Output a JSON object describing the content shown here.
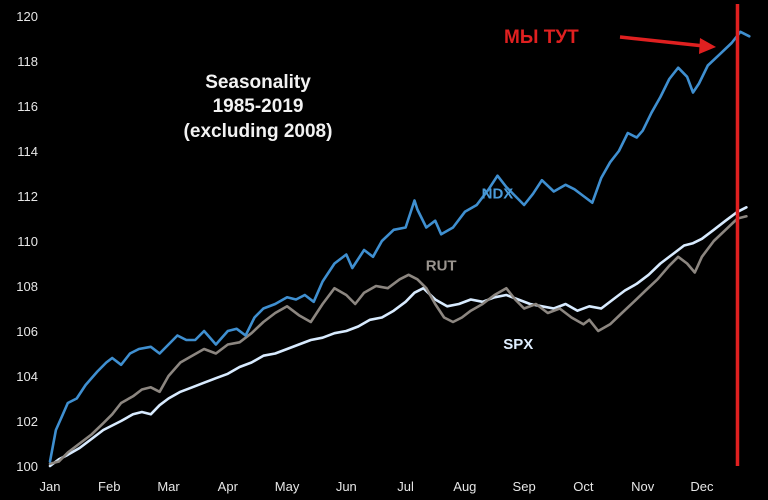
{
  "chart_data": {
    "type": "line",
    "title": [
      "Seasonality",
      "1985-2019",
      "(excluding 2008)"
    ],
    "xlabel": "",
    "ylabel": "",
    "x_ticks": [
      "Jan",
      "Feb",
      "Mar",
      "Apr",
      "May",
      "Jun",
      "Jul",
      "Aug",
      "Sep",
      "Oct",
      "Nov",
      "Dec"
    ],
    "xlim": [
      0,
      11.98
    ],
    "y_ticks": [
      100,
      102,
      104,
      106,
      108,
      110,
      112,
      114,
      116,
      118,
      120
    ],
    "ylim": [
      100,
      120
    ],
    "grid": false,
    "series": [
      {
        "name": "NDX",
        "color": "#3f8fd0",
        "points": [
          [
            0,
            100.2
          ],
          [
            0.1,
            101.6
          ],
          [
            0.2,
            102.2
          ],
          [
            0.3,
            102.8
          ],
          [
            0.45,
            103.0
          ],
          [
            0.6,
            103.6
          ],
          [
            0.8,
            104.2
          ],
          [
            0.95,
            104.6
          ],
          [
            1.05,
            104.8
          ],
          [
            1.2,
            104.5
          ],
          [
            1.35,
            105.0
          ],
          [
            1.5,
            105.2
          ],
          [
            1.7,
            105.3
          ],
          [
            1.85,
            105.0
          ],
          [
            2.0,
            105.4
          ],
          [
            2.15,
            105.8
          ],
          [
            2.3,
            105.6
          ],
          [
            2.45,
            105.6
          ],
          [
            2.6,
            106.0
          ],
          [
            2.8,
            105.4
          ],
          [
            3.0,
            106.0
          ],
          [
            3.15,
            106.1
          ],
          [
            3.3,
            105.8
          ],
          [
            3.45,
            106.6
          ],
          [
            3.6,
            107.0
          ],
          [
            3.8,
            107.2
          ],
          [
            4.0,
            107.5
          ],
          [
            4.15,
            107.4
          ],
          [
            4.3,
            107.6
          ],
          [
            4.45,
            107.3
          ],
          [
            4.6,
            108.2
          ],
          [
            4.8,
            109.0
          ],
          [
            5.0,
            109.4
          ],
          [
            5.1,
            108.8
          ],
          [
            5.3,
            109.6
          ],
          [
            5.45,
            109.3
          ],
          [
            5.6,
            110.0
          ],
          [
            5.8,
            110.5
          ],
          [
            6.0,
            110.6
          ],
          [
            6.15,
            111.8
          ],
          [
            6.2,
            111.4
          ],
          [
            6.35,
            110.6
          ],
          [
            6.5,
            110.9
          ],
          [
            6.6,
            110.3
          ],
          [
            6.8,
            110.6
          ],
          [
            7.0,
            111.3
          ],
          [
            7.2,
            111.6
          ],
          [
            7.4,
            112.3
          ],
          [
            7.55,
            112.9
          ],
          [
            7.7,
            112.4
          ],
          [
            7.85,
            112.0
          ],
          [
            8.0,
            111.6
          ],
          [
            8.15,
            112.1
          ],
          [
            8.3,
            112.7
          ],
          [
            8.5,
            112.2
          ],
          [
            8.7,
            112.5
          ],
          [
            8.85,
            112.3
          ],
          [
            9.0,
            112.0
          ],
          [
            9.15,
            111.7
          ],
          [
            9.3,
            112.8
          ],
          [
            9.45,
            113.5
          ],
          [
            9.6,
            114.0
          ],
          [
            9.75,
            114.8
          ],
          [
            9.9,
            114.6
          ],
          [
            10.0,
            114.9
          ],
          [
            10.15,
            115.7
          ],
          [
            10.3,
            116.4
          ],
          [
            10.45,
            117.2
          ],
          [
            10.6,
            117.7
          ],
          [
            10.75,
            117.3
          ],
          [
            10.85,
            116.6
          ],
          [
            10.95,
            117.0
          ],
          [
            11.1,
            117.8
          ],
          [
            11.3,
            118.3
          ],
          [
            11.5,
            118.8
          ],
          [
            11.65,
            119.3
          ],
          [
            11.8,
            119.1
          ]
        ]
      },
      {
        "name": "RUT",
        "color": "#8c8680",
        "points": [
          [
            0,
            100.1
          ],
          [
            0.15,
            100.2
          ],
          [
            0.3,
            100.6
          ],
          [
            0.5,
            101.0
          ],
          [
            0.7,
            101.4
          ],
          [
            0.9,
            101.9
          ],
          [
            1.05,
            102.3
          ],
          [
            1.2,
            102.8
          ],
          [
            1.4,
            103.1
          ],
          [
            1.55,
            103.4
          ],
          [
            1.7,
            103.5
          ],
          [
            1.85,
            103.3
          ],
          [
            2.0,
            104.0
          ],
          [
            2.2,
            104.6
          ],
          [
            2.4,
            104.9
          ],
          [
            2.6,
            105.2
          ],
          [
            2.8,
            105.0
          ],
          [
            3.0,
            105.4
          ],
          [
            3.2,
            105.5
          ],
          [
            3.4,
            105.9
          ],
          [
            3.6,
            106.4
          ],
          [
            3.8,
            106.8
          ],
          [
            4.0,
            107.1
          ],
          [
            4.2,
            106.7
          ],
          [
            4.4,
            106.4
          ],
          [
            4.6,
            107.2
          ],
          [
            4.8,
            107.9
          ],
          [
            5.0,
            107.6
          ],
          [
            5.15,
            107.2
          ],
          [
            5.3,
            107.7
          ],
          [
            5.5,
            108.0
          ],
          [
            5.7,
            107.9
          ],
          [
            5.9,
            108.3
          ],
          [
            6.05,
            108.5
          ],
          [
            6.2,
            108.3
          ],
          [
            6.35,
            107.9
          ],
          [
            6.5,
            107.2
          ],
          [
            6.65,
            106.6
          ],
          [
            6.8,
            106.4
          ],
          [
            6.95,
            106.6
          ],
          [
            7.1,
            106.9
          ],
          [
            7.3,
            107.2
          ],
          [
            7.5,
            107.6
          ],
          [
            7.7,
            107.9
          ],
          [
            7.85,
            107.4
          ],
          [
            8.0,
            107.0
          ],
          [
            8.2,
            107.2
          ],
          [
            8.4,
            106.8
          ],
          [
            8.6,
            107.0
          ],
          [
            8.8,
            106.6
          ],
          [
            9.0,
            106.3
          ],
          [
            9.1,
            106.5
          ],
          [
            9.25,
            106.0
          ],
          [
            9.45,
            106.3
          ],
          [
            9.65,
            106.8
          ],
          [
            9.85,
            107.3
          ],
          [
            10.05,
            107.8
          ],
          [
            10.25,
            108.3
          ],
          [
            10.45,
            108.9
          ],
          [
            10.6,
            109.3
          ],
          [
            10.75,
            109.0
          ],
          [
            10.88,
            108.6
          ],
          [
            11.0,
            109.3
          ],
          [
            11.2,
            110.0
          ],
          [
            11.4,
            110.5
          ],
          [
            11.6,
            111.0
          ],
          [
            11.75,
            111.1
          ]
        ]
      },
      {
        "name": "SPX",
        "color": "#d8ebff",
        "points": [
          [
            0,
            100.0
          ],
          [
            0.15,
            100.3
          ],
          [
            0.3,
            100.5
          ],
          [
            0.5,
            100.8
          ],
          [
            0.7,
            101.2
          ],
          [
            0.9,
            101.6
          ],
          [
            1.05,
            101.8
          ],
          [
            1.2,
            102.0
          ],
          [
            1.4,
            102.3
          ],
          [
            1.55,
            102.4
          ],
          [
            1.7,
            102.3
          ],
          [
            1.85,
            102.7
          ],
          [
            2.0,
            103.0
          ],
          [
            2.2,
            103.3
          ],
          [
            2.4,
            103.5
          ],
          [
            2.6,
            103.7
          ],
          [
            2.8,
            103.9
          ],
          [
            3.0,
            104.1
          ],
          [
            3.2,
            104.4
          ],
          [
            3.4,
            104.6
          ],
          [
            3.6,
            104.9
          ],
          [
            3.8,
            105.0
          ],
          [
            4.0,
            105.2
          ],
          [
            4.2,
            105.4
          ],
          [
            4.4,
            105.6
          ],
          [
            4.6,
            105.7
          ],
          [
            4.8,
            105.9
          ],
          [
            5.0,
            106.0
          ],
          [
            5.2,
            106.2
          ],
          [
            5.4,
            106.5
          ],
          [
            5.6,
            106.6
          ],
          [
            5.8,
            106.9
          ],
          [
            6.0,
            107.3
          ],
          [
            6.15,
            107.7
          ],
          [
            6.3,
            107.9
          ],
          [
            6.5,
            107.4
          ],
          [
            6.7,
            107.1
          ],
          [
            6.9,
            107.2
          ],
          [
            7.1,
            107.4
          ],
          [
            7.3,
            107.3
          ],
          [
            7.5,
            107.5
          ],
          [
            7.7,
            107.6
          ],
          [
            7.9,
            107.4
          ],
          [
            8.1,
            107.2
          ],
          [
            8.3,
            107.1
          ],
          [
            8.5,
            107.0
          ],
          [
            8.7,
            107.2
          ],
          [
            8.9,
            106.9
          ],
          [
            9.1,
            107.1
          ],
          [
            9.3,
            107.0
          ],
          [
            9.5,
            107.4
          ],
          [
            9.7,
            107.8
          ],
          [
            9.9,
            108.1
          ],
          [
            10.1,
            108.5
          ],
          [
            10.3,
            109.0
          ],
          [
            10.5,
            109.4
          ],
          [
            10.7,
            109.8
          ],
          [
            10.85,
            109.9
          ],
          [
            11.0,
            110.1
          ],
          [
            11.2,
            110.5
          ],
          [
            11.4,
            110.9
          ],
          [
            11.6,
            111.3
          ],
          [
            11.75,
            111.5
          ]
        ]
      }
    ],
    "series_labels": [
      {
        "text": "NDX",
        "x": 7.55,
        "y": 111.9,
        "color": "#4a9ad8"
      },
      {
        "text": "RUT",
        "x": 6.6,
        "y": 108.7,
        "color": "#9a948e"
      },
      {
        "text": "SPX",
        "x": 7.9,
        "y": 105.2,
        "color": "#dfeeff"
      }
    ],
    "marker_line": {
      "x": 11.6,
      "color": "#e02020"
    },
    "annotation": {
      "text": "МЫ ТУТ",
      "color": "#e02020"
    }
  }
}
